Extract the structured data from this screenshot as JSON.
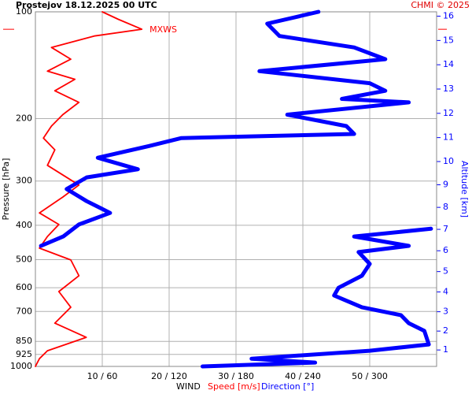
{
  "chart_data": {
    "type": "wind-profile",
    "title": "Prostejov    18.12.2025 00 UTC",
    "credit": "CHMI © 2025",
    "xlabel": "WIND",
    "ylabel": "Pressure [hPa]",
    "y2label": "Altitude [km]",
    "annotation": "MXWS",
    "xlim": [
      0,
      60
    ],
    "x2lim": [
      0,
      360
    ],
    "xticks": [
      {
        "value": 10,
        "label": "10 / 60"
      },
      {
        "value": 20,
        "label": "20 / 120"
      },
      {
        "value": 30,
        "label": "30 / 180"
      },
      {
        "value": 40,
        "label": "40 / 240"
      },
      {
        "value": 50,
        "label": "50 / 300"
      }
    ],
    "ylim": [
      100,
      1000
    ],
    "ylog": true,
    "yticks": [
      100,
      200,
      300,
      400,
      500,
      600,
      700,
      850,
      925,
      1000
    ],
    "y2ticks": [
      1,
      2,
      3,
      4,
      5,
      6,
      7,
      8,
      9,
      10,
      11,
      12,
      13,
      14,
      15,
      16
    ],
    "grid": true,
    "series": [
      {
        "name": "Speed [m/s]",
        "color": "#ff0000",
        "axis": "x",
        "pressure": [
          100,
          105,
          112,
          117,
          126,
          136,
          147,
          155,
          167,
          180,
          195,
          210,
          227,
          245,
          271,
          308,
          333,
          369,
          398,
          430,
          464,
          501,
          555,
          615,
          681,
          755,
          828,
          903,
          951,
          1000
        ],
        "values": [
          10,
          12.4,
          15.9,
          8.8,
          2.4,
          5.3,
          1.8,
          5.9,
          2.9,
          6.5,
          4.1,
          2.4,
          1.2,
          2.9,
          1.8,
          6.5,
          4.1,
          0.6,
          3.5,
          1.8,
          0.6,
          5.3,
          6.5,
          3.5,
          5.3,
          2.9,
          7.6,
          1.8,
          0.6,
          0
        ]
      },
      {
        "name": "Direction [°]",
        "color": "#0000ff",
        "axis": "x2",
        "pressure": [
          100,
          108,
          117,
          126,
          136,
          147,
          159,
          167,
          176,
          180,
          195,
          210,
          221,
          227,
          239,
          258,
          278,
          293,
          316,
          342,
          369,
          398,
          430,
          457,
          null,
          409,
          430,
          457,
          476,
          514,
          555,
          600,
          631,
          681,
          717,
          755,
          794,
          867,
          903,
          951,
          975,
          1000
        ],
        "values": [
          254,
          208,
          219,
          286,
          314,
          201,
          300,
          314,
          275,
          335,
          226,
          279,
          286,
          131,
          102,
          56,
          92,
          46,
          28,
          46,
          67,
          39,
          25,
          5,
          null,
          355,
          286,
          335,
          290,
          300,
          293,
          272,
          268,
          293,
          328,
          335,
          349,
          353,
          300,
          194,
          251,
          150
        ]
      }
    ]
  }
}
